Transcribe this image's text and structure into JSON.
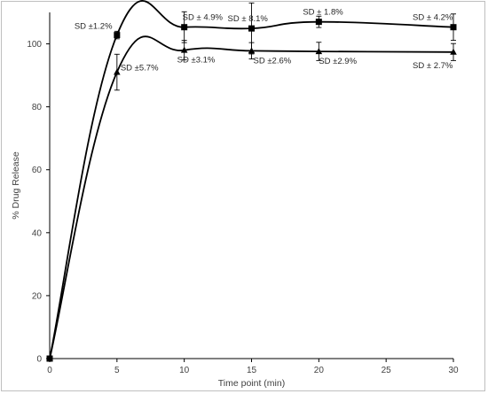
{
  "chart_data": {
    "type": "line",
    "xlabel": "Time point (min)",
    "ylabel": "% Drug Release",
    "xlim": [
      0,
      30
    ],
    "ylim": [
      0,
      110
    ],
    "x_ticks": [
      0,
      5,
      10,
      15,
      20,
      25,
      30
    ],
    "y_ticks": [
      0,
      20,
      40,
      60,
      80,
      100
    ],
    "grid": false,
    "legend": "none",
    "series": [
      {
        "marker": "square",
        "x": [
          0,
          5,
          10,
          15,
          20,
          30
        ],
        "values": [
          0,
          102.8,
          105.3,
          104.9,
          107.0,
          105.3
        ],
        "error": [
          0,
          1.2,
          4.9,
          8.1,
          1.8,
          4.2
        ],
        "annotations": [
          "",
          "SD ±1.2%",
          "SD ± 4.9%",
          "SD ± 8.1%",
          "SD ± 1.8%",
          "SD ± 4.2%"
        ]
      },
      {
        "marker": "triangle",
        "x": [
          0,
          5,
          10,
          15,
          20,
          30
        ],
        "values": [
          0,
          91.0,
          98.0,
          97.8,
          97.6,
          97.4
        ],
        "error": [
          0,
          5.7,
          3.1,
          2.6,
          2.9,
          2.7
        ],
        "annotations": [
          "",
          "SD ±5.7%",
          "SD ±3.1%",
          "SD ±2.6%",
          "SD ±2.9%",
          "SD ± 2.7%"
        ]
      }
    ]
  }
}
